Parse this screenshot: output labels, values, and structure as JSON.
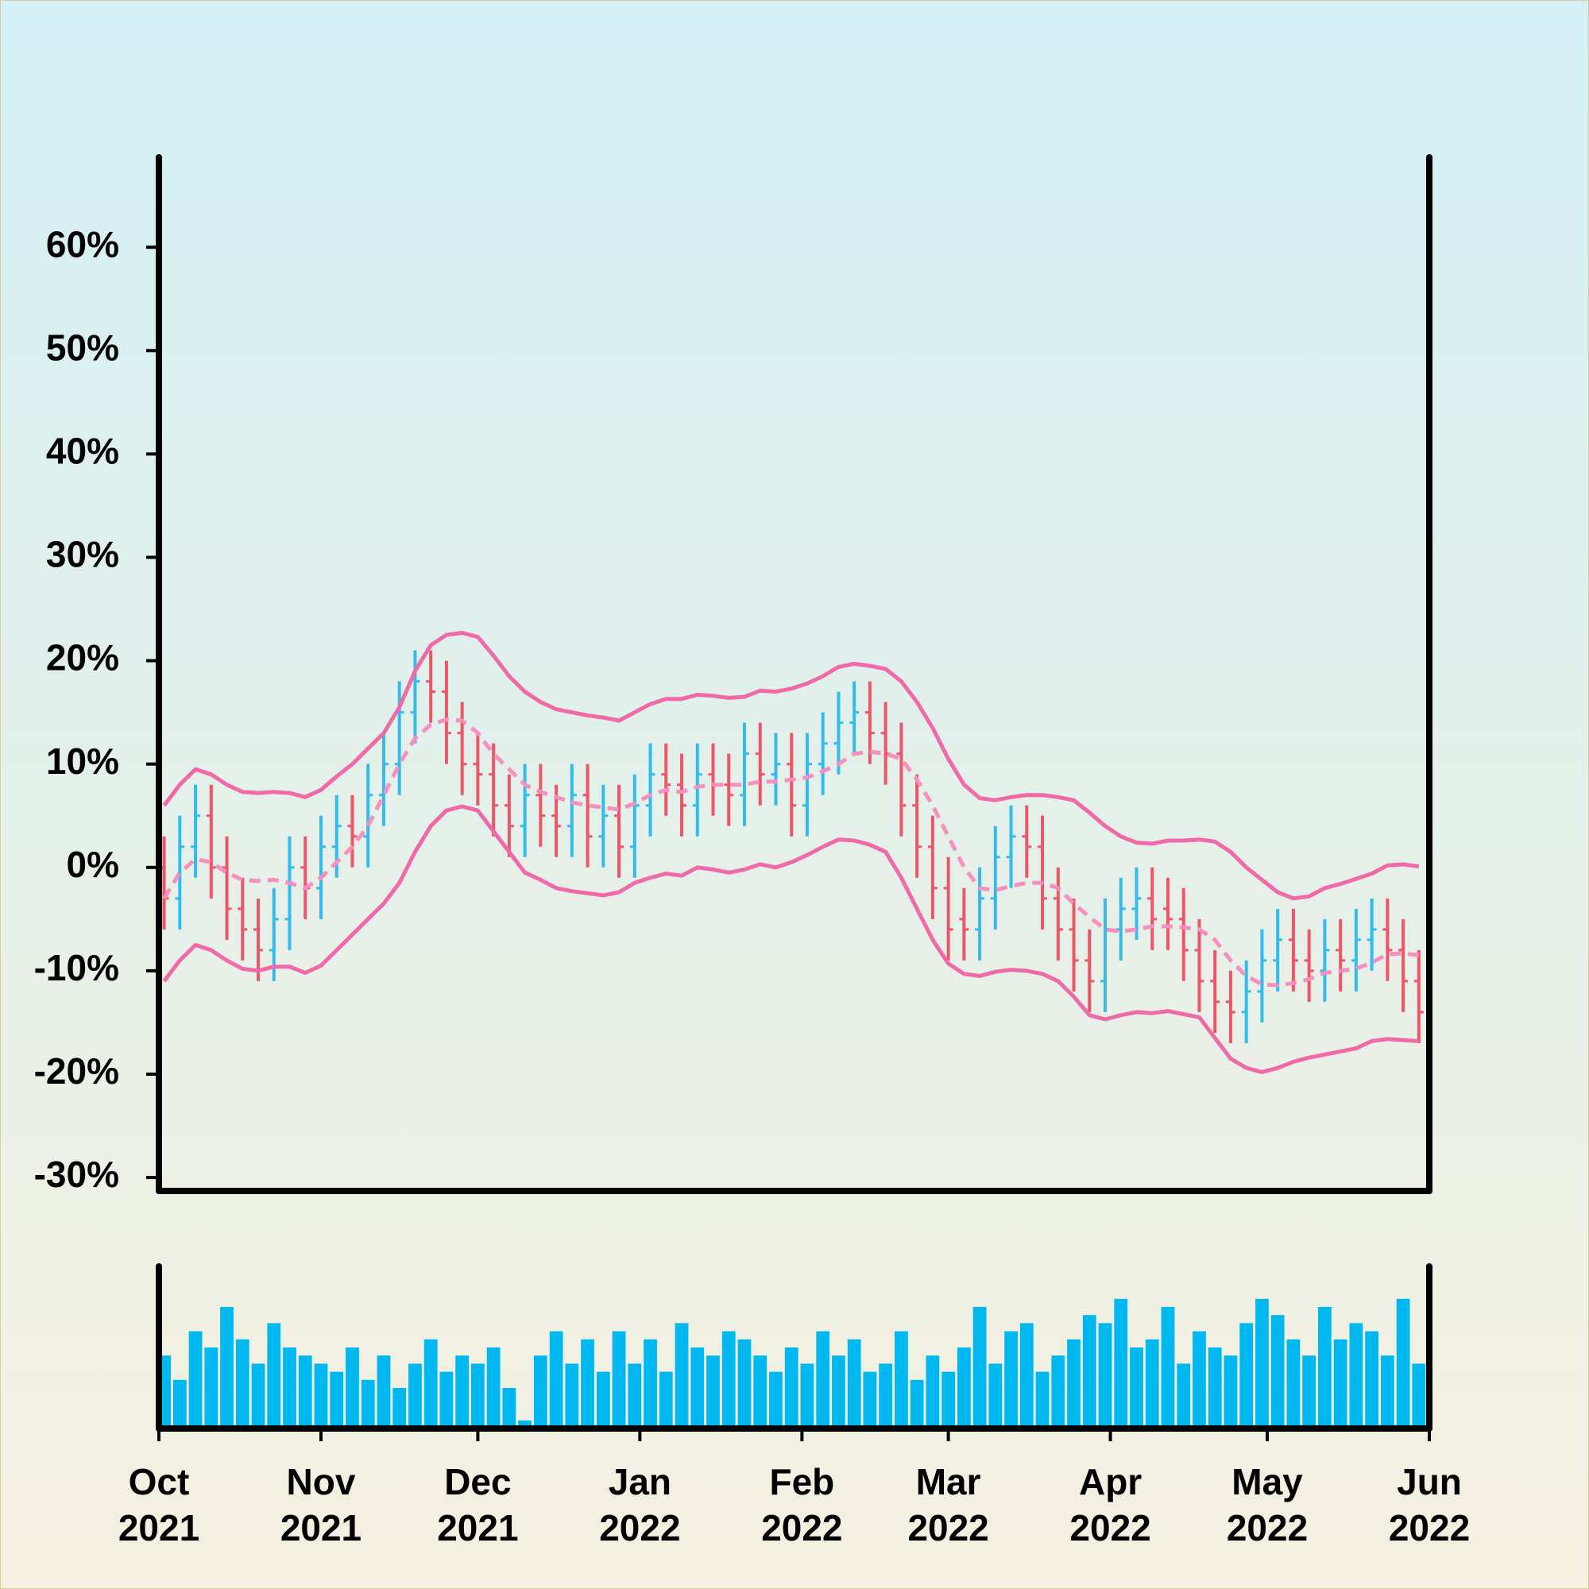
{
  "chart_data": {
    "type": "ohlc",
    "x": [
      1,
      4,
      7,
      10,
      13,
      16,
      19,
      22,
      25,
      28,
      31,
      34,
      37,
      40,
      43,
      46,
      49,
      52,
      55,
      58,
      61,
      64,
      67,
      70,
      73,
      76,
      79,
      82,
      85,
      88,
      91,
      94,
      97,
      100,
      103,
      106,
      109,
      112,
      115,
      118,
      121,
      124,
      127,
      130,
      133,
      136,
      139,
      142,
      145,
      148,
      151,
      154,
      157,
      160,
      163,
      166,
      169,
      172,
      175,
      178,
      181,
      184,
      187,
      190,
      193,
      196,
      199,
      202,
      205,
      208,
      211,
      214,
      217,
      220,
      223,
      226,
      229,
      232,
      235,
      238,
      241
    ],
    "open": [
      0,
      -3,
      2,
      5,
      0,
      -4,
      -6,
      -8,
      -5,
      0,
      -2,
      2,
      4,
      3,
      7,
      10,
      15,
      18,
      17,
      13,
      10,
      9,
      6,
      4,
      7,
      5,
      4,
      7,
      3,
      5,
      2,
      6,
      9,
      8,
      6,
      9,
      8,
      7,
      11,
      9,
      10,
      6,
      10,
      12,
      14,
      15,
      13,
      11,
      6,
      2,
      -2,
      -5,
      -6,
      -3,
      1,
      3,
      2,
      -3,
      -6,
      -9,
      -11,
      -6,
      -4,
      -3,
      -4,
      -5,
      -8,
      -11,
      -13,
      -14,
      -12,
      -9,
      -7,
      -9,
      -10,
      -8,
      -9,
      -7,
      -6,
      -8,
      -11
    ],
    "high": [
      3,
      5,
      8,
      8,
      3,
      -1,
      -3,
      -2,
      3,
      3,
      5,
      7,
      7,
      10,
      13,
      18,
      21,
      21,
      20,
      16,
      13,
      12,
      9,
      10,
      10,
      8,
      10,
      10,
      8,
      8,
      9,
      12,
      12,
      11,
      12,
      12,
      11,
      14,
      14,
      13,
      13,
      13,
      15,
      17,
      18,
      18,
      16,
      14,
      9,
      5,
      1,
      -2,
      0,
      4,
      6,
      6,
      5,
      0,
      -3,
      -6,
      -3,
      -1,
      0,
      0,
      -1,
      -2,
      -5,
      -8,
      -10,
      -9,
      -6,
      -4,
      -4,
      -6,
      -5,
      -5,
      -4,
      -3,
      -3,
      -5,
      -8
    ],
    "low": [
      -6,
      -6,
      -1,
      -3,
      -7,
      -9,
      -11,
      -11,
      -8,
      -5,
      -5,
      -1,
      0,
      0,
      4,
      7,
      12,
      14,
      10,
      7,
      6,
      3,
      1,
      1,
      2,
      1,
      1,
      0,
      0,
      -1,
      -1,
      3,
      5,
      3,
      3,
      5,
      4,
      4,
      6,
      6,
      3,
      3,
      7,
      9,
      11,
      10,
      8,
      3,
      -1,
      -5,
      -9,
      -9,
      -9,
      -6,
      -2,
      -1,
      -6,
      -9,
      -12,
      -14,
      -14,
      -9,
      -7,
      -8,
      -8,
      -11,
      -14,
      -16,
      -17,
      -17,
      -15,
      -12,
      -12,
      -13,
      -13,
      -12,
      -12,
      -10,
      -11,
      -14,
      -17
    ],
    "close": [
      -3,
      2,
      5,
      0,
      -4,
      -6,
      -8,
      -5,
      0,
      -2,
      2,
      4,
      3,
      7,
      10,
      15,
      18,
      17,
      13,
      10,
      9,
      6,
      4,
      7,
      5,
      4,
      7,
      3,
      5,
      2,
      6,
      9,
      8,
      6,
      9,
      8,
      7,
      11,
      9,
      10,
      6,
      10,
      12,
      14,
      15,
      13,
      11,
      6,
      2,
      -2,
      -6,
      -6,
      -3,
      1,
      3,
      2,
      -3,
      -6,
      -9,
      -11,
      -6,
      -4,
      -3,
      -5,
      -5,
      -8,
      -11,
      -13,
      -14,
      -12,
      -9,
      -7,
      -9,
      -10,
      -8,
      -9,
      -7,
      -6,
      -8,
      -11,
      -14
    ],
    "up_color": "#33bbee",
    "down_color": "#ee5566",
    "bands": {
      "color": "#f06aa8",
      "middle_color": "#f78fbf",
      "upper": [
        6,
        8,
        9.5,
        9,
        8,
        7.3,
        7.2,
        7.3,
        7.2,
        6.8,
        7.5,
        8.8,
        10,
        11.5,
        13,
        15.5,
        19,
        21.5,
        22.5,
        22.7,
        22.3,
        20.5,
        18.5,
        17,
        16,
        15.3,
        15,
        14.7,
        14.5,
        14.2,
        15,
        15.8,
        16.3,
        16.3,
        16.7,
        16.6,
        16.4,
        16.5,
        17.1,
        17,
        17.3,
        17.8,
        18.5,
        19.4,
        19.7,
        19.5,
        19.2,
        18,
        16,
        13.5,
        10.5,
        8,
        6.7,
        6.5,
        6.8,
        7,
        7,
        6.8,
        6.5,
        5.3,
        4,
        3,
        2.4,
        2.3,
        2.6,
        2.6,
        2.7,
        2.5,
        1.5,
        0,
        -1.2,
        -2.4,
        -3,
        -2.8,
        -2,
        -1.6,
        -1.1,
        -0.6,
        0.2,
        0.3,
        0.1
      ],
      "middle": [
        -3,
        -0.5,
        0.8,
        0.5,
        -0.5,
        -1.2,
        -1.3,
        -1.2,
        -1.5,
        -2,
        -1,
        0.5,
        2,
        4,
        7,
        10,
        12.5,
        13.8,
        14.3,
        14.2,
        13,
        11,
        9.5,
        8,
        7.3,
        6.8,
        6.3,
        6,
        5.8,
        5.6,
        6.2,
        7,
        7.5,
        7.3,
        7.8,
        8,
        8,
        8,
        8.3,
        8.3,
        8.5,
        8.7,
        9.3,
        10,
        11,
        11.2,
        11,
        10.5,
        8.5,
        6,
        3,
        0,
        -2,
        -2.2,
        -1.8,
        -1.5,
        -1.5,
        -2,
        -3.5,
        -4.8,
        -6,
        -6.2,
        -6,
        -5.7,
        -5.7,
        -5.8,
        -6,
        -7,
        -9,
        -10.5,
        -11.3,
        -11.4,
        -11.2,
        -10.8,
        -10.2,
        -10,
        -9.8,
        -9.2,
        -8.4,
        -8.3,
        -8.5
      ],
      "lower": [
        -11,
        -9,
        -7.5,
        -8,
        -9,
        -9.8,
        -10,
        -9.6,
        -9.6,
        -10.2,
        -9.5,
        -8,
        -6.5,
        -5,
        -3.5,
        -1.5,
        1.5,
        4,
        5.5,
        5.9,
        5.5,
        3.5,
        1.5,
        -0.5,
        -1.2,
        -2,
        -2.3,
        -2.5,
        -2.7,
        -2.4,
        -1.5,
        -1,
        -0.6,
        -0.8,
        0,
        -0.2,
        -0.5,
        -0.2,
        0.3,
        0,
        0.5,
        1.2,
        2,
        2.7,
        2.6,
        2.2,
        1.5,
        -1,
        -4,
        -7,
        -9.3,
        -10.3,
        -10.5,
        -10.1,
        -9.9,
        -10,
        -10.3,
        -11,
        -12.5,
        -14.3,
        -14.7,
        -14.3,
        -14,
        -14.1,
        -13.9,
        -14.2,
        -14.5,
        -16.5,
        -18.5,
        -19.4,
        -19.8,
        -19.4,
        -18.8,
        -18.4,
        -18.1,
        -17.8,
        -17.5,
        -16.8,
        -16.6,
        -16.7,
        -16.8
      ]
    },
    "volume": {
      "color": "#00b8f0",
      "ylim": [
        0,
        100
      ],
      "values": [
        45,
        30,
        60,
        50,
        75,
        55,
        40,
        65,
        50,
        45,
        40,
        35,
        50,
        30,
        45,
        25,
        40,
        55,
        35,
        45,
        40,
        50,
        25,
        5,
        45,
        60,
        40,
        55,
        35,
        60,
        40,
        55,
        35,
        65,
        50,
        45,
        60,
        55,
        45,
        35,
        50,
        40,
        60,
        45,
        55,
        35,
        40,
        60,
        30,
        45,
        35,
        50,
        75,
        40,
        60,
        65,
        35,
        45,
        55,
        70,
        65,
        80,
        50,
        55,
        75,
        40,
        60,
        50,
        45,
        65,
        80,
        70,
        55,
        45,
        75,
        55,
        65,
        60,
        45,
        80,
        40
      ]
    },
    "xlim": [
      0,
      243
    ],
    "xticks": [
      {
        "value": 0,
        "label": "Oct 2021"
      },
      {
        "value": 31,
        "label": "Nov 2021"
      },
      {
        "value": 61,
        "label": "Dec 2021"
      },
      {
        "value": 92,
        "label": "Jan 2022"
      },
      {
        "value": 123,
        "label": "Feb 2022"
      },
      {
        "value": 151,
        "label": "Mar 2022"
      },
      {
        "value": 182,
        "label": "Apr 2022"
      },
      {
        "value": 212,
        "label": "May 2022"
      },
      {
        "value": 243,
        "label": "Jun 2022"
      }
    ],
    "ylim": [
      -31.3,
      68.7
    ],
    "yticks": [
      {
        "value": -30,
        "label": "-30%"
      },
      {
        "value": -20,
        "label": "-20%"
      },
      {
        "value": -10,
        "label": "-10%"
      },
      {
        "value": 0,
        "label": "0%"
      },
      {
        "value": 10,
        "label": "10%"
      },
      {
        "value": 20,
        "label": "20%"
      },
      {
        "value": 30,
        "label": "30%"
      },
      {
        "value": 40,
        "label": "40%"
      },
      {
        "value": 50,
        "label": "50%"
      },
      {
        "value": 60,
        "label": "60%"
      }
    ]
  }
}
